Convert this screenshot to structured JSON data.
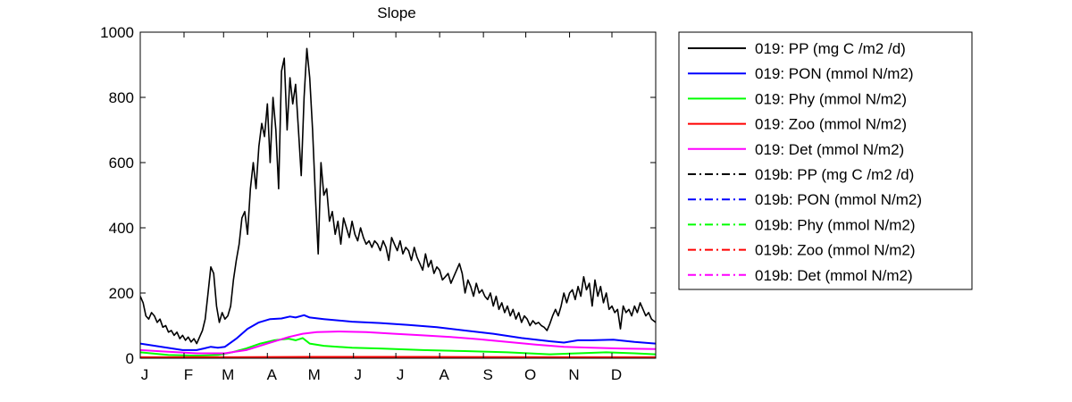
{
  "chart_data": {
    "type": "line",
    "title": "Slope",
    "xlabel": "",
    "ylabel": "",
    "xlim": [
      0,
      365
    ],
    "ylim": [
      0,
      1000
    ],
    "yticks": [
      0,
      200,
      400,
      600,
      800,
      1000
    ],
    "xticks": [
      {
        "label": "J",
        "day": 1
      },
      {
        "label": "F",
        "day": 32
      },
      {
        "label": "M",
        "day": 60
      },
      {
        "label": "A",
        "day": 91
      },
      {
        "label": "M",
        "day": 121
      },
      {
        "label": "J",
        "day": 152
      },
      {
        "label": "J",
        "day": 182
      },
      {
        "label": "A",
        "day": 213
      },
      {
        "label": "S",
        "day": 244
      },
      {
        "label": "O",
        "day": 274
      },
      {
        "label": "N",
        "day": 305
      },
      {
        "label": "D",
        "day": 335
      }
    ],
    "grid": false,
    "legend_position": "outside-right",
    "series": [
      {
        "name": "019: PP (mg C /m2 /d)",
        "color": "#000000",
        "dash": "solid",
        "points": [
          [
            0,
            190
          ],
          [
            2,
            170
          ],
          [
            4,
            130
          ],
          [
            6,
            120
          ],
          [
            8,
            140
          ],
          [
            10,
            130
          ],
          [
            12,
            110
          ],
          [
            14,
            120
          ],
          [
            16,
            95
          ],
          [
            18,
            100
          ],
          [
            20,
            80
          ],
          [
            22,
            85
          ],
          [
            24,
            70
          ],
          [
            26,
            80
          ],
          [
            28,
            60
          ],
          [
            30,
            70
          ],
          [
            32,
            55
          ],
          [
            34,
            65
          ],
          [
            36,
            50
          ],
          [
            38,
            60
          ],
          [
            40,
            45
          ],
          [
            42,
            65
          ],
          [
            44,
            85
          ],
          [
            46,
            120
          ],
          [
            48,
            200
          ],
          [
            50,
            280
          ],
          [
            52,
            260
          ],
          [
            54,
            160
          ],
          [
            56,
            110
          ],
          [
            58,
            140
          ],
          [
            60,
            120
          ],
          [
            62,
            130
          ],
          [
            64,
            160
          ],
          [
            66,
            240
          ],
          [
            68,
            300
          ],
          [
            70,
            350
          ],
          [
            72,
            430
          ],
          [
            74,
            450
          ],
          [
            76,
            380
          ],
          [
            78,
            520
          ],
          [
            80,
            600
          ],
          [
            82,
            520
          ],
          [
            84,
            650
          ],
          [
            86,
            720
          ],
          [
            88,
            680
          ],
          [
            90,
            780
          ],
          [
            92,
            600
          ],
          [
            94,
            800
          ],
          [
            96,
            700
          ],
          [
            98,
            520
          ],
          [
            100,
            880
          ],
          [
            102,
            920
          ],
          [
            104,
            700
          ],
          [
            106,
            860
          ],
          [
            108,
            780
          ],
          [
            110,
            840
          ],
          [
            112,
            700
          ],
          [
            114,
            560
          ],
          [
            116,
            800
          ],
          [
            118,
            950
          ],
          [
            120,
            860
          ],
          [
            122,
            700
          ],
          [
            124,
            500
          ],
          [
            126,
            320
          ],
          [
            128,
            600
          ],
          [
            130,
            500
          ],
          [
            132,
            520
          ],
          [
            134,
            420
          ],
          [
            136,
            450
          ],
          [
            138,
            380
          ],
          [
            140,
            420
          ],
          [
            142,
            350
          ],
          [
            144,
            430
          ],
          [
            146,
            400
          ],
          [
            148,
            370
          ],
          [
            150,
            420
          ],
          [
            152,
            380
          ],
          [
            154,
            360
          ],
          [
            156,
            400
          ],
          [
            158,
            370
          ],
          [
            160,
            350
          ],
          [
            162,
            360
          ],
          [
            164,
            340
          ],
          [
            166,
            360
          ],
          [
            168,
            350
          ],
          [
            170,
            330
          ],
          [
            172,
            360
          ],
          [
            174,
            340
          ],
          [
            176,
            300
          ],
          [
            178,
            370
          ],
          [
            180,
            350
          ],
          [
            182,
            330
          ],
          [
            184,
            360
          ],
          [
            186,
            320
          ],
          [
            188,
            340
          ],
          [
            190,
            330
          ],
          [
            192,
            300
          ],
          [
            194,
            340
          ],
          [
            196,
            310
          ],
          [
            198,
            290
          ],
          [
            200,
            270
          ],
          [
            202,
            320
          ],
          [
            204,
            280
          ],
          [
            206,
            300
          ],
          [
            208,
            260
          ],
          [
            210,
            280
          ],
          [
            212,
            270
          ],
          [
            214,
            240
          ],
          [
            216,
            250
          ],
          [
            218,
            260
          ],
          [
            220,
            230
          ],
          [
            222,
            250
          ],
          [
            224,
            270
          ],
          [
            226,
            290
          ],
          [
            228,
            260
          ],
          [
            230,
            200
          ],
          [
            232,
            240
          ],
          [
            234,
            220
          ],
          [
            236,
            190
          ],
          [
            238,
            230
          ],
          [
            240,
            200
          ],
          [
            242,
            210
          ],
          [
            244,
            190
          ],
          [
            246,
            180
          ],
          [
            248,
            200
          ],
          [
            250,
            160
          ],
          [
            252,
            190
          ],
          [
            254,
            150
          ],
          [
            256,
            170
          ],
          [
            258,
            140
          ],
          [
            260,
            160
          ],
          [
            262,
            130
          ],
          [
            264,
            150
          ],
          [
            266,
            120
          ],
          [
            268,
            140
          ],
          [
            270,
            110
          ],
          [
            272,
            130
          ],
          [
            274,
            120
          ],
          [
            276,
            100
          ],
          [
            278,
            115
          ],
          [
            280,
            105
          ],
          [
            282,
            110
          ],
          [
            284,
            100
          ],
          [
            286,
            95
          ],
          [
            288,
            85
          ],
          [
            290,
            105
          ],
          [
            292,
            130
          ],
          [
            294,
            150
          ],
          [
            296,
            130
          ],
          [
            298,
            160
          ],
          [
            300,
            200
          ],
          [
            302,
            170
          ],
          [
            304,
            200
          ],
          [
            306,
            210
          ],
          [
            308,
            180
          ],
          [
            310,
            220
          ],
          [
            312,
            190
          ],
          [
            314,
            250
          ],
          [
            316,
            210
          ],
          [
            318,
            230
          ],
          [
            320,
            160
          ],
          [
            322,
            240
          ],
          [
            324,
            190
          ],
          [
            326,
            220
          ],
          [
            328,
            170
          ],
          [
            330,
            200
          ],
          [
            332,
            150
          ],
          [
            334,
            160
          ],
          [
            336,
            140
          ],
          [
            338,
            150
          ],
          [
            340,
            90
          ],
          [
            342,
            160
          ],
          [
            344,
            140
          ],
          [
            346,
            150
          ],
          [
            348,
            130
          ],
          [
            350,
            160
          ],
          [
            352,
            140
          ],
          [
            354,
            170
          ],
          [
            356,
            150
          ],
          [
            358,
            130
          ],
          [
            360,
            140
          ],
          [
            362,
            120
          ],
          [
            365,
            110
          ]
        ]
      },
      {
        "name": "019: PON (mmol N/m2)",
        "color": "#0000ff",
        "dash": "solid",
        "points": [
          [
            0,
            45
          ],
          [
            15,
            35
          ],
          [
            30,
            25
          ],
          [
            40,
            25
          ],
          [
            45,
            30
          ],
          [
            50,
            35
          ],
          [
            55,
            32
          ],
          [
            60,
            35
          ],
          [
            68,
            60
          ],
          [
            76,
            90
          ],
          [
            84,
            110
          ],
          [
            92,
            120
          ],
          [
            100,
            122
          ],
          [
            106,
            128
          ],
          [
            110,
            125
          ],
          [
            116,
            132
          ],
          [
            120,
            125
          ],
          [
            130,
            120
          ],
          [
            150,
            112
          ],
          [
            170,
            108
          ],
          [
            190,
            102
          ],
          [
            210,
            95
          ],
          [
            230,
            85
          ],
          [
            250,
            75
          ],
          [
            270,
            62
          ],
          [
            290,
            52
          ],
          [
            300,
            48
          ],
          [
            310,
            55
          ],
          [
            320,
            55
          ],
          [
            335,
            57
          ],
          [
            350,
            50
          ],
          [
            365,
            45
          ]
        ]
      },
      {
        "name": "019: Phy (mmol N/m2)",
        "color": "#00ff00",
        "dash": "solid",
        "points": [
          [
            0,
            18
          ],
          [
            20,
            10
          ],
          [
            40,
            8
          ],
          [
            55,
            10
          ],
          [
            65,
            18
          ],
          [
            75,
            30
          ],
          [
            85,
            45
          ],
          [
            95,
            55
          ],
          [
            105,
            60
          ],
          [
            110,
            55
          ],
          [
            115,
            62
          ],
          [
            120,
            45
          ],
          [
            130,
            38
          ],
          [
            150,
            32
          ],
          [
            170,
            30
          ],
          [
            200,
            25
          ],
          [
            230,
            22
          ],
          [
            260,
            18
          ],
          [
            290,
            12
          ],
          [
            310,
            15
          ],
          [
            330,
            18
          ],
          [
            350,
            15
          ],
          [
            365,
            12
          ]
        ]
      },
      {
        "name": "019: Zoo (mmol N/m2)",
        "color": "#ff0000",
        "dash": "solid",
        "points": [
          [
            0,
            3
          ],
          [
            60,
            3
          ],
          [
            120,
            4
          ],
          [
            200,
            4
          ],
          [
            300,
            3
          ],
          [
            365,
            3
          ]
        ]
      },
      {
        "name": "019: Det (mmol N/m2)",
        "color": "#ff00ff",
        "dash": "solid",
        "points": [
          [
            0,
            25
          ],
          [
            20,
            20
          ],
          [
            40,
            15
          ],
          [
            60,
            15
          ],
          [
            75,
            25
          ],
          [
            90,
            45
          ],
          [
            105,
            65
          ],
          [
            115,
            75
          ],
          [
            125,
            80
          ],
          [
            140,
            82
          ],
          [
            160,
            80
          ],
          [
            180,
            75
          ],
          [
            200,
            70
          ],
          [
            220,
            65
          ],
          [
            240,
            58
          ],
          [
            260,
            50
          ],
          [
            280,
            42
          ],
          [
            300,
            35
          ],
          [
            320,
            32
          ],
          [
            340,
            30
          ],
          [
            365,
            28
          ]
        ]
      },
      {
        "name": "019b: PP (mg C /m2 /d)",
        "color": "#000000",
        "dash": "dashdot",
        "points": []
      },
      {
        "name": "019b: PON (mmol N/m2)",
        "color": "#0000ff",
        "dash": "dashdot",
        "points": []
      },
      {
        "name": "019b: Phy (mmol N/m2)",
        "color": "#00ff00",
        "dash": "dashdot",
        "points": []
      },
      {
        "name": "019b: Zoo (mmol N/m2)",
        "color": "#ff0000",
        "dash": "dashdot",
        "points": []
      },
      {
        "name": "019b: Det (mmol N/m2)",
        "color": "#ff00ff",
        "dash": "dashdot",
        "points": []
      }
    ]
  }
}
